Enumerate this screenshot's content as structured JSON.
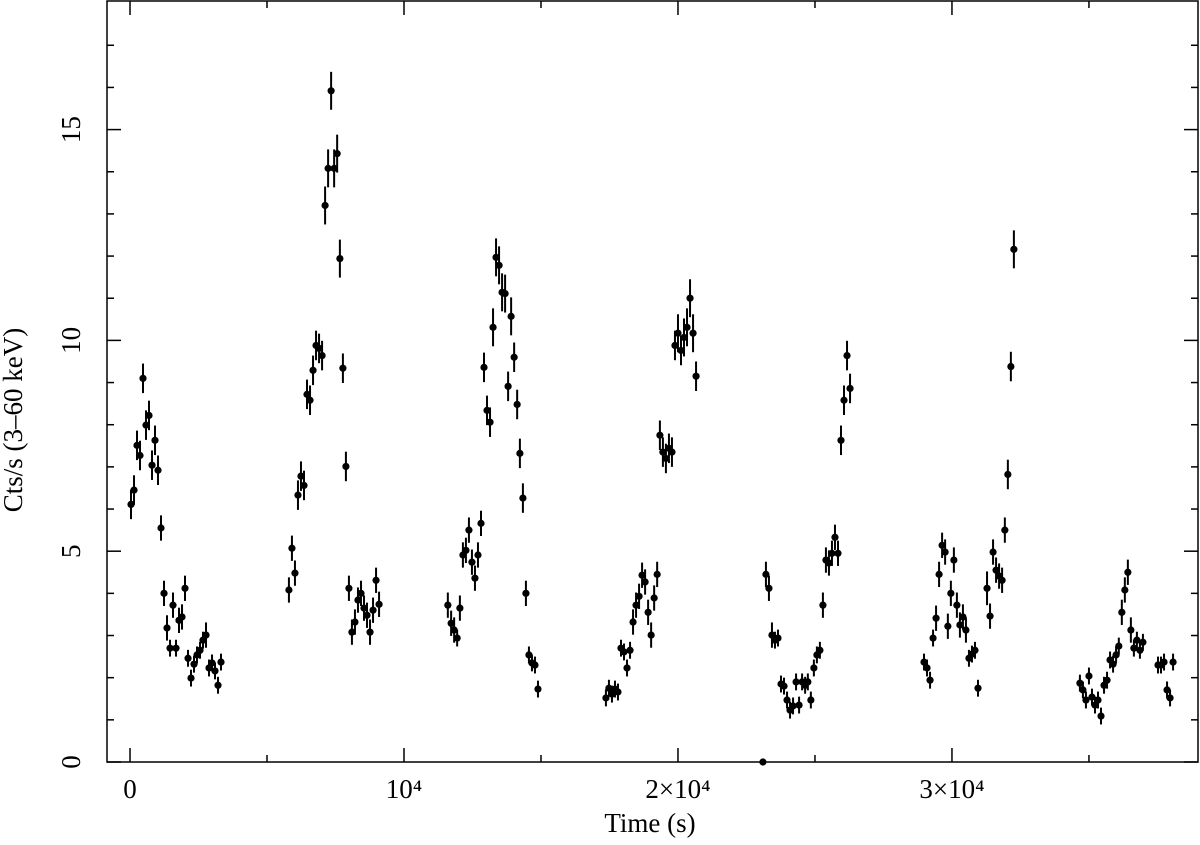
{
  "chart_data": {
    "type": "errorbar",
    "xlabel": "Time (s)",
    "ylabel": "Cts/s (3–60 keV)",
    "xlim": [
      -840,
      38980
    ],
    "ylim": [
      0,
      18.05
    ],
    "xticks": [
      0,
      {
        "value": 10000,
        "label": "10⁴"
      },
      {
        "value": 20000,
        "label": "2×10⁴"
      },
      {
        "value": 30000,
        "label": "3×10⁴"
      }
    ],
    "minor_xticks": [
      5000,
      15000,
      25000,
      35000
    ],
    "yticks": [
      0,
      5,
      10,
      15
    ],
    "minor_yticks": [
      1,
      2,
      3,
      4,
      6,
      7,
      8,
      9,
      11,
      12,
      13,
      14,
      16,
      17
    ],
    "color": "#000000",
    "x": [
      36,
      146,
      255,
      365,
      474,
      584,
      693,
      803,
      912,
      1022,
      1131,
      1241,
      1350,
      1460,
      1569,
      1679,
      1788,
      1898,
      2007,
      2117,
      2226,
      2336,
      2445,
      2555,
      2664,
      2774,
      2883,
      2993,
      3102,
      3212,
      3321,
      5800,
      5910,
      6020,
      6130,
      6240,
      6350,
      6460,
      6570,
      6680,
      6790,
      6900,
      7010,
      7120,
      7230,
      7340,
      7450,
      7560,
      7660,
      7770,
      7880,
      7990,
      8100,
      8210,
      8320,
      8430,
      8540,
      8650,
      8760,
      8870,
      8980,
      9090,
      11600,
      11720,
      11830,
      11940,
      12040,
      12150,
      12260,
      12370,
      12480,
      12590,
      12700,
      12810,
      12920,
      13030,
      13140,
      13250,
      13360,
      13470,
      13580,
      13690,
      13800,
      13910,
      14020,
      14130,
      14230,
      14340,
      14450,
      14560,
      14670,
      14780,
      14890,
      17370,
      17480,
      17590,
      17700,
      17810,
      17920,
      18030,
      18140,
      18250,
      18360,
      18470,
      18580,
      18690,
      18800,
      18910,
      19020,
      19130,
      19240,
      19340,
      19450,
      19560,
      19670,
      19780,
      19890,
      20000,
      20110,
      20220,
      20330,
      20440,
      20550,
      20660,
      23100,
      23210,
      23320,
      23430,
      23540,
      23650,
      23760,
      23870,
      23980,
      24090,
      24200,
      24310,
      24420,
      24530,
      24640,
      24740,
      24850,
      24960,
      25070,
      25180,
      25290,
      25400,
      25510,
      25620,
      25730,
      25840,
      25950,
      26060,
      26170,
      26280,
      28980,
      29090,
      29200,
      29310,
      29420,
      29530,
      29640,
      29750,
      29850,
      29960,
      30070,
      30180,
      30290,
      30400,
      30510,
      30620,
      30730,
      30840,
      30950,
      31280,
      31390,
      31500,
      31610,
      31720,
      31830,
      31930,
      32040,
      32150,
      32260,
      34670,
      34780,
      34890,
      35000,
      35110,
      35220,
      35330,
      35440,
      35550,
      35660,
      35770,
      35880,
      35990,
      36090,
      36200,
      36310,
      36420,
      36530,
      36640,
      36750,
      36860,
      36970,
      37520,
      37630,
      37740,
      37850,
      37960,
      38070
    ],
    "values": [
      6.11,
      6.45,
      7.51,
      7.27,
      9.1,
      7.99,
      8.22,
      7.04,
      7.63,
      6.92,
      5.55,
      4.0,
      3.18,
      2.7,
      3.72,
      2.7,
      3.36,
      3.44,
      4.12,
      2.46,
      1.99,
      2.32,
      2.54,
      2.65,
      2.89,
      3.01,
      2.23,
      2.35,
      2.16,
      1.82,
      2.37,
      4.08,
      5.07,
      4.48,
      6.33,
      6.78,
      6.56,
      8.72,
      8.58,
      9.29,
      9.88,
      9.81,
      9.64,
      13.2,
      14.08,
      15.92,
      14.08,
      14.43,
      11.94,
      9.34,
      7.01,
      4.12,
      3.08,
      3.32,
      3.84,
      4.0,
      3.65,
      3.48,
      3.08,
      3.6,
      4.31,
      3.74,
      3.72,
      3.29,
      3.13,
      2.94,
      3.65,
      4.91,
      5.02,
      5.5,
      4.74,
      4.36,
      4.91,
      5.66,
      9.36,
      8.34,
      8.06,
      10.31,
      11.97,
      11.78,
      11.14,
      11.11,
      8.91,
      10.57,
      9.6,
      8.48,
      7.32,
      6.26,
      4.0,
      2.54,
      2.35,
      2.3,
      1.73,
      1.52,
      1.75,
      1.61,
      1.73,
      1.66,
      2.7,
      2.61,
      2.23,
      2.65,
      3.32,
      3.72,
      3.93,
      4.43,
      4.27,
      3.55,
      3.01,
      3.89,
      4.45,
      7.75,
      7.35,
      7.2,
      7.44,
      7.35,
      9.88,
      10.17,
      9.76,
      10.07,
      10.31,
      11.0,
      10.17,
      9.15,
      0,
      4.45,
      4.12,
      3.01,
      2.89,
      2.94,
      1.85,
      1.8,
      1.47,
      1.23,
      1.33,
      1.9,
      1.35,
      1.9,
      1.82,
      1.9,
      1.47,
      2.23,
      2.54,
      2.65,
      3.72,
      4.79,
      4.72,
      4.95,
      5.33,
      4.95,
      7.63,
      8.58,
      9.64,
      8.86,
      2.37,
      2.23,
      1.94,
      2.94,
      3.41,
      4.45,
      5.14,
      4.98,
      3.22,
      4.0,
      4.79,
      3.72,
      3.25,
      3.44,
      3.13,
      2.46,
      2.56,
      2.65,
      1.75,
      4.12,
      3.46,
      4.98,
      4.55,
      4.41,
      4.31,
      5.5,
      6.82,
      9.38,
      12.16,
      1.87,
      1.71,
      1.47,
      2.04,
      1.54,
      1.35,
      1.47,
      1.09,
      1.82,
      1.94,
      2.42,
      2.32,
      2.54,
      2.75,
      3.55,
      4.08,
      4.5,
      3.13,
      2.7,
      2.89,
      2.65,
      2.84,
      2.3,
      2.3,
      2.37,
      1.71,
      1.52,
      2.37
    ],
    "yerr": [
      0.35,
      0.35,
      0.35,
      0.35,
      0.35,
      0.35,
      0.35,
      0.35,
      0.35,
      0.35,
      0.3,
      0.3,
      0.3,
      0.2,
      0.3,
      0.2,
      0.3,
      0.3,
      0.3,
      0.2,
      0.2,
      0.2,
      0.2,
      0.2,
      0.2,
      0.3,
      0.2,
      0.2,
      0.2,
      0.2,
      0.2,
      0.3,
      0.3,
      0.3,
      0.35,
      0.35,
      0.35,
      0.35,
      0.35,
      0.35,
      0.35,
      0.35,
      0.35,
      0.45,
      0.45,
      0.45,
      0.45,
      0.45,
      0.45,
      0.35,
      0.35,
      0.3,
      0.3,
      0.3,
      0.3,
      0.3,
      0.3,
      0.3,
      0.3,
      0.3,
      0.3,
      0.3,
      0.3,
      0.3,
      0.3,
      0.2,
      0.3,
      0.3,
      0.3,
      0.3,
      0.3,
      0.3,
      0.3,
      0.3,
      0.35,
      0.35,
      0.35,
      0.45,
      0.45,
      0.45,
      0.45,
      0.45,
      0.35,
      0.45,
      0.35,
      0.35,
      0.35,
      0.35,
      0.3,
      0.2,
      0.2,
      0.2,
      0.2,
      0.2,
      0.2,
      0.2,
      0.2,
      0.2,
      0.2,
      0.2,
      0.2,
      0.2,
      0.3,
      0.3,
      0.3,
      0.3,
      0.3,
      0.3,
      0.3,
      0.3,
      0.3,
      0.35,
      0.35,
      0.35,
      0.35,
      0.35,
      0.35,
      0.45,
      0.35,
      0.45,
      0.45,
      0.45,
      0.45,
      0.35,
      0,
      0.3,
      0.3,
      0.3,
      0.2,
      0.2,
      0.2,
      0.2,
      0.2,
      0.2,
      0.2,
      0.2,
      0.2,
      0.2,
      0.2,
      0.2,
      0.2,
      0.2,
      0.2,
      0.2,
      0.3,
      0.3,
      0.3,
      0.3,
      0.3,
      0.3,
      0.35,
      0.35,
      0.35,
      0.35,
      0.2,
      0.2,
      0.2,
      0.2,
      0.3,
      0.3,
      0.3,
      0.3,
      0.3,
      0.3,
      0.3,
      0.3,
      0.3,
      0.3,
      0.3,
      0.2,
      0.2,
      0.2,
      0.2,
      0.4,
      0.3,
      0.3,
      0.3,
      0.3,
      0.3,
      0.3,
      0.35,
      0.35,
      0.45,
      0.2,
      0.2,
      0.2,
      0.2,
      0.2,
      0.2,
      0.2,
      0.2,
      0.2,
      0.2,
      0.2,
      0.2,
      0.2,
      0.2,
      0.3,
      0.3,
      0.3,
      0.3,
      0.2,
      0.2,
      0.2,
      0.2,
      0.2,
      0.2,
      0.2,
      0.2,
      0.2,
      0.2
    ]
  }
}
